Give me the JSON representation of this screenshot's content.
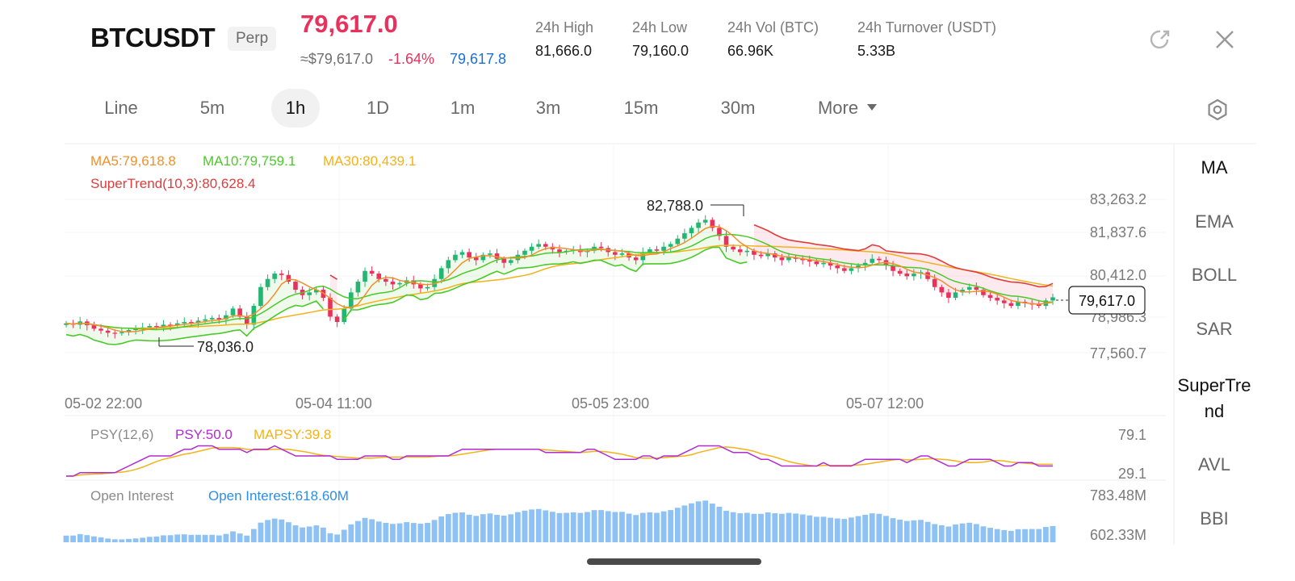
{
  "header": {
    "symbol": "BTCUSDT",
    "perp_badge": "Perp",
    "last_price": "79,617.0",
    "approx_usd": "≈$79,617.0",
    "change_pct": "-1.64%",
    "mark_price": "79,617.8",
    "stats": [
      {
        "label": "24h   High",
        "value": "81,666.0"
      },
      {
        "label": "24h   Low",
        "value": "79,160.0"
      },
      {
        "label": "24h   Vol (BTC)",
        "value": "66.96K"
      },
      {
        "label": "24h   Turnover (USDT)",
        "value": "5.33B"
      }
    ],
    "icons": {
      "share": "share-icon",
      "close": "close-icon"
    }
  },
  "tabs": [
    {
      "label": "Line",
      "active": false
    },
    {
      "label": "5m",
      "active": false
    },
    {
      "label": "1h",
      "active": true
    },
    {
      "label": "1D",
      "active": false
    },
    {
      "label": "1m",
      "active": false
    },
    {
      "label": "3m",
      "active": false
    },
    {
      "label": "15m",
      "active": false
    },
    {
      "label": "30m",
      "active": false
    },
    {
      "label": "More",
      "active": false
    }
  ],
  "indicator_menu": [
    {
      "label": "MA",
      "active": true
    },
    {
      "label": "EMA",
      "active": false
    },
    {
      "label": "BOLL",
      "active": false
    },
    {
      "label": "SAR",
      "active": false
    },
    {
      "label": "SuperTre",
      "label2": "nd",
      "active": false
    },
    {
      "label": "AVL",
      "active": false
    },
    {
      "label": "BBI",
      "active": false
    }
  ],
  "colors": {
    "up": "#22b573",
    "down": "#e8325c",
    "ma5": "#f0902a",
    "ma10": "#4bc92a",
    "ma30": "#f2b21a",
    "supertrend": "#e03c3c",
    "psy": "#b02bd1",
    "mapsy": "#f2b21a",
    "oi_bar": "#8ec2f5",
    "oi_label": "#2d8ee6"
  },
  "main_legend": {
    "ma5": "MA5:79,618.8",
    "ma10": "MA10:79,759.1",
    "ma30": "MA30:80,439.1",
    "supertrend": "SuperTrend(10,3):80,628.4"
  },
  "psy_legend": {
    "name": "PSY(12,6)",
    "psy": "PSY:50.0",
    "mapsy": "MAPSY:39.8"
  },
  "oi_legend": {
    "name": "Open Interest",
    "value": "Open Interest:618.60M"
  },
  "annotations": {
    "high": "82,788.0",
    "low": "78,036.0",
    "current": "79,617.0"
  },
  "chart_data": [
    {
      "type": "candlestick",
      "y_ticks": [
        "83,263.2",
        "81,837.6",
        "80,412.0",
        "78,986.3",
        "77,560.7"
      ],
      "ylim": [
        77560.7,
        83263.2
      ],
      "x_ticks": [
        "05-02 22:00",
        "05-04 11:00",
        "05-05 23:00",
        "05-07 12:00"
      ],
      "close": [
        78650,
        78600,
        78720,
        78580,
        78450,
        78380,
        78300,
        78280,
        78320,
        78400,
        78450,
        78500,
        78550,
        78520,
        78600,
        78580,
        78650,
        78700,
        78680,
        78750,
        78800,
        78850,
        78800,
        78950,
        79200,
        78900,
        78600,
        79300,
        80000,
        80300,
        80500,
        80450,
        80200,
        79900,
        79700,
        79800,
        79900,
        79600,
        78900,
        78700,
        79200,
        79800,
        80200,
        80600,
        80500,
        80300,
        80200,
        80100,
        80150,
        80250,
        80100,
        79950,
        80000,
        80300,
        80700,
        81000,
        81200,
        81300,
        81100,
        81000,
        81200,
        81250,
        81050,
        80900,
        81000,
        81200,
        81350,
        81500,
        81600,
        81500,
        81400,
        81300,
        81350,
        81400,
        81300,
        81350,
        81500,
        81450,
        81300,
        81200,
        81250,
        81100,
        81000,
        81300,
        81400,
        81350,
        81500,
        81600,
        81800,
        82000,
        82200,
        82400,
        82500,
        82200,
        81900,
        81500,
        81400,
        81300,
        81350,
        81200,
        81150,
        81250,
        81100,
        81000,
        81100,
        81050,
        81000,
        80950,
        80850,
        80900,
        80800,
        80700,
        80600,
        80700,
        80800,
        80900,
        81050,
        81000,
        80800,
        80600,
        80500,
        80400,
        80500,
        80550,
        80300,
        80000,
        79800,
        79600,
        79800,
        79900,
        80000,
        79900,
        79700,
        79600,
        79500,
        79400,
        79300,
        79450,
        79400,
        79350,
        79300,
        79500,
        79617
      ]
    },
    {
      "type": "line",
      "name": "PSY",
      "y_ticks": [
        "79.1",
        "29.1"
      ],
      "ylim": [
        29.1,
        79.1
      ]
    },
    {
      "type": "bar",
      "name": "Open Interest",
      "y_ticks": [
        "783.48M",
        "602.33M"
      ],
      "ylim": [
        602.33,
        783.48
      ]
    }
  ]
}
